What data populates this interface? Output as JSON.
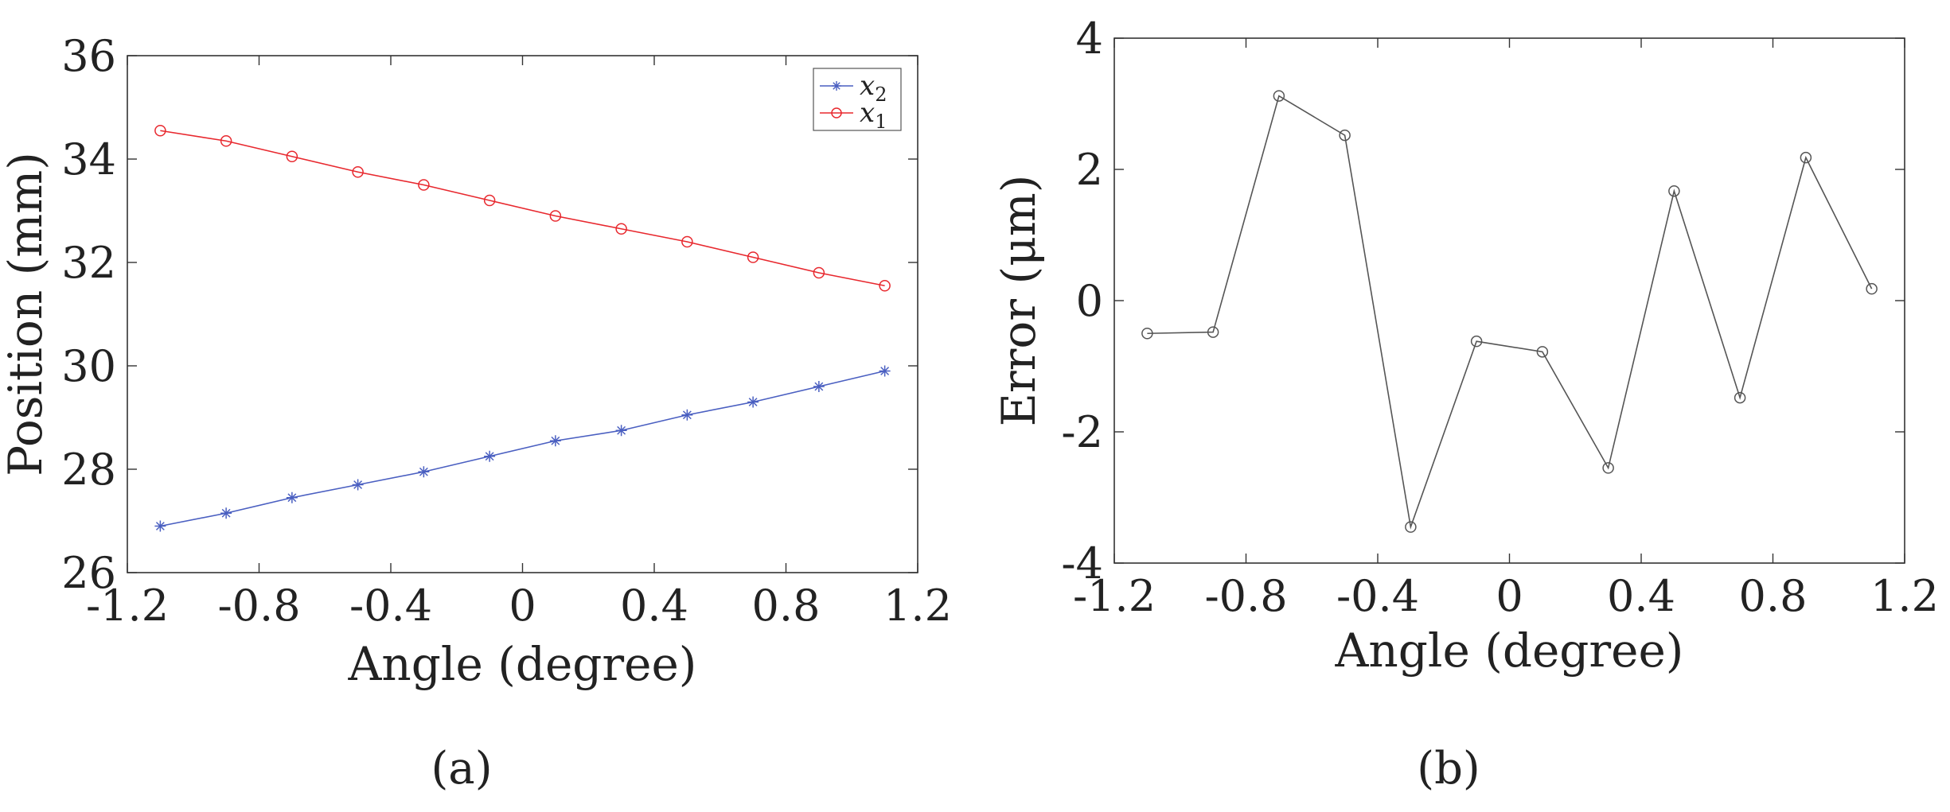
{
  "chart_data": [
    {
      "type": "line",
      "panel": "(a)",
      "title": "",
      "xlabel": "Angle (degree)",
      "ylabel": "Position (mm)",
      "xlim": [
        -1.2,
        1.2
      ],
      "ylim": [
        26,
        36
      ],
      "xticks": [
        -1.2,
        -0.8,
        -0.4,
        0,
        0.4,
        0.8,
        1.2
      ],
      "xtick_labels": [
        "-1.2",
        "-0.8",
        "-0.4",
        "0",
        "0.4",
        "0.8",
        "1.2"
      ],
      "yticks": [
        26,
        28,
        30,
        32,
        34,
        36
      ],
      "ytick_labels": [
        "26",
        "28",
        "30",
        "32",
        "34",
        "36"
      ],
      "x": [
        -1.1,
        -0.9,
        -0.7,
        -0.5,
        -0.3,
        -0.1,
        0.1,
        0.3,
        0.5,
        0.7,
        0.9,
        1.1
      ],
      "legend_position": "top-right",
      "series": [
        {
          "name": "x",
          "subscript": "2",
          "color": "#4a5fc1",
          "marker": "star",
          "values": [
            26.9,
            27.15,
            27.45,
            27.7,
            27.95,
            28.25,
            28.55,
            28.75,
            29.05,
            29.3,
            29.6,
            29.9
          ]
        },
        {
          "name": "x",
          "subscript": "1",
          "color": "#e8282e",
          "marker": "circle",
          "values": [
            34.55,
            34.35,
            34.05,
            33.75,
            33.5,
            33.2,
            32.9,
            32.65,
            32.4,
            32.1,
            31.8,
            31.55
          ]
        }
      ]
    },
    {
      "type": "line",
      "panel": "(b)",
      "title": "",
      "xlabel": "Angle (degree)",
      "ylabel": "Error  (μm)",
      "xlim": [
        -1.2,
        1.2
      ],
      "ylim": [
        -4,
        4
      ],
      "xticks": [
        -1.2,
        -0.8,
        -0.4,
        0,
        0.4,
        0.8,
        1.2
      ],
      "xtick_labels": [
        "-1.2",
        "-0.8",
        "-0.4",
        "0",
        "0.4",
        "0.8",
        "1.2"
      ],
      "yticks": [
        -4,
        -2,
        0,
        2,
        4
      ],
      "ytick_labels": [
        "-4",
        "-2",
        "0",
        "2",
        "4"
      ],
      "x": [
        -1.1,
        -0.9,
        -0.7,
        -0.5,
        -0.3,
        -0.1,
        0.1,
        0.3,
        0.5,
        0.7,
        0.9,
        1.1
      ],
      "series": [
        {
          "name": "error",
          "color": "#555555",
          "marker": "circle",
          "values": [
            -0.5,
            -0.48,
            3.12,
            2.52,
            -3.45,
            -0.62,
            -0.78,
            -2.55,
            1.67,
            -1.48,
            2.18,
            0.18
          ]
        }
      ]
    }
  ]
}
